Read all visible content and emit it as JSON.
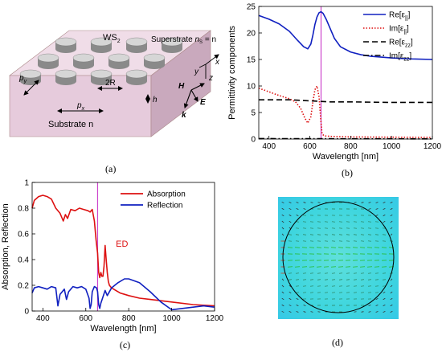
{
  "panel_a": {
    "caption": "(a)",
    "labels": {
      "ws2": "WS",
      "ws2_sub": "2",
      "superstrate": "Superstrate ",
      "superstrate_ns": "n",
      "superstrate_ns_sub": "S",
      "superstrate_eq": " = n",
      "substrate": "Substrate n",
      "py": "p",
      "py_sub": "y",
      "px": "p",
      "px_sub": "x",
      "twoR": "2R",
      "h": "h",
      "x_axis": "x",
      "y_axis": "y",
      "z_axis": "z",
      "H": "H",
      "E": "E",
      "k": "k"
    }
  },
  "panel_d": {
    "caption": "(d)"
  },
  "chart_data": [
    {
      "panel": "b",
      "caption": "(b)",
      "type": "line",
      "xlabel": "Wavelength [nm]",
      "ylabel": "Permittivity components",
      "xlim": [
        350,
        1200
      ],
      "ylim": [
        0,
        25
      ],
      "xticks": [
        400,
        600,
        800,
        1000,
        1200
      ],
      "yticks": [
        0,
        5,
        10,
        15,
        20,
        25
      ],
      "legend_position": "top-right",
      "marker_line_x": 655,
      "marker_color": "#cc44cc",
      "series": [
        {
          "name": "Re[ε||]",
          "legend_main": "Re[ε",
          "legend_sub": "||",
          "legend_end": "]",
          "color": "#1020c0",
          "dash": "solid",
          "x": [
            350,
            400,
            450,
            500,
            540,
            570,
            590,
            605,
            615,
            625,
            635,
            645,
            655,
            665,
            680,
            700,
            720,
            750,
            800,
            850,
            900,
            1000,
            1100,
            1200
          ],
          "y": [
            23.3,
            22.6,
            21.7,
            20.3,
            18.6,
            17.4,
            17.0,
            17.9,
            19.6,
            21.6,
            23.0,
            23.8,
            24.0,
            23.7,
            22.6,
            20.8,
            19.0,
            17.4,
            16.4,
            15.9,
            15.6,
            15.3,
            15.1,
            15.0
          ]
        },
        {
          "name": "Im[ε||]",
          "legend_main": "Im[ε",
          "legend_sub": "||",
          "legend_end": "]",
          "color": "#dd1111",
          "dash": "dot",
          "x": [
            350,
            400,
            450,
            500,
            530,
            555,
            575,
            590,
            605,
            615,
            625,
            635,
            645,
            655,
            660,
            670,
            700,
            800,
            1000,
            1200
          ],
          "y": [
            9.6,
            8.9,
            8.2,
            7.6,
            7.0,
            5.8,
            4.0,
            3.0,
            4.2,
            7.0,
            9.3,
            10.0,
            8.0,
            3.0,
            1.0,
            0.6,
            0.5,
            0.4,
            0.35,
            0.3
          ]
        },
        {
          "name": "Re[εzz]",
          "legend_main": "Re[ε",
          "legend_sub": "zz",
          "legend_end": "]",
          "color": "#000000",
          "dash": "dash",
          "x": [
            350,
            500,
            600,
            700,
            800,
            1000,
            1200
          ],
          "y": [
            7.4,
            7.4,
            7.2,
            7.0,
            7.0,
            6.9,
            6.9
          ]
        },
        {
          "name": "Im[εzz]",
          "legend_main": "Im[ε",
          "legend_sub": "zz",
          "legend_end": "]",
          "color": "#000000",
          "dash": "dashdot",
          "x": [
            350,
            600,
            800,
            1000,
            1200
          ],
          "y": [
            0.08,
            0.07,
            0.05,
            0.04,
            0.03
          ]
        }
      ]
    },
    {
      "panel": "c",
      "caption": "(c)",
      "type": "line",
      "xlabel": "Wavelength [nm]",
      "ylabel": "Absorption, Reflection",
      "xlim": [
        350,
        1200
      ],
      "ylim": [
        0,
        1
      ],
      "xticks": [
        400,
        600,
        800,
        1000,
        1200
      ],
      "yticks": [
        0,
        0.2,
        0.4,
        0.6,
        0.8,
        1
      ],
      "ytick_labels": [
        "0",
        "0.2",
        "0.4",
        "0.6",
        "0.8",
        "1"
      ],
      "legend_position": "top-right",
      "annotation": {
        "text": "ED",
        "x": 740,
        "y": 0.5,
        "color": "#dd1111"
      },
      "marker_line_x": 655,
      "marker_color": "#cc44cc",
      "series": [
        {
          "name": "Absorption",
          "color": "#dd1111",
          "x": [
            350,
            360,
            380,
            400,
            420,
            440,
            460,
            480,
            495,
            505,
            515,
            530,
            550,
            570,
            590,
            610,
            620,
            630,
            640,
            648,
            655,
            660,
            665,
            670,
            675,
            680,
            685,
            690,
            695,
            700,
            705,
            710,
            720,
            740,
            760,
            780,
            800,
            850,
            900,
            1000,
            1100,
            1200
          ],
          "y": [
            0.8,
            0.86,
            0.89,
            0.9,
            0.89,
            0.87,
            0.8,
            0.76,
            0.7,
            0.75,
            0.72,
            0.79,
            0.78,
            0.8,
            0.79,
            0.78,
            0.77,
            0.79,
            0.7,
            0.55,
            0.45,
            0.3,
            0.26,
            0.3,
            0.27,
            0.27,
            0.35,
            0.51,
            0.4,
            0.3,
            0.23,
            0.2,
            0.18,
            0.16,
            0.14,
            0.13,
            0.12,
            0.1,
            0.09,
            0.07,
            0.05,
            0.04
          ]
        },
        {
          "name": "Reflection",
          "color": "#1020c0",
          "x": [
            350,
            360,
            380,
            400,
            420,
            440,
            460,
            470,
            480,
            500,
            510,
            520,
            540,
            560,
            580,
            600,
            615,
            620,
            625,
            630,
            640,
            650,
            655,
            660,
            665,
            670,
            680,
            690,
            700,
            720,
            750,
            780,
            800,
            850,
            900,
            950,
            1000,
            1050,
            1100,
            1150,
            1200
          ],
          "y": [
            0.14,
            0.18,
            0.19,
            0.18,
            0.17,
            0.19,
            0.18,
            0.04,
            0.13,
            0.17,
            0.09,
            0.15,
            0.19,
            0.18,
            0.19,
            0.17,
            0.1,
            0.02,
            0.05,
            0.15,
            0.19,
            0.18,
            0.15,
            0.05,
            0.02,
            0.06,
            0.11,
            0.16,
            0.12,
            0.18,
            0.22,
            0.25,
            0.25,
            0.22,
            0.15,
            0.07,
            0.01,
            0.02,
            0.03,
            0.04,
            0.03
          ]
        }
      ]
    },
    {
      "panel": "d",
      "type": "heatmap",
      "description_visible": "field map with circle outline and arrow vectors"
    }
  ]
}
